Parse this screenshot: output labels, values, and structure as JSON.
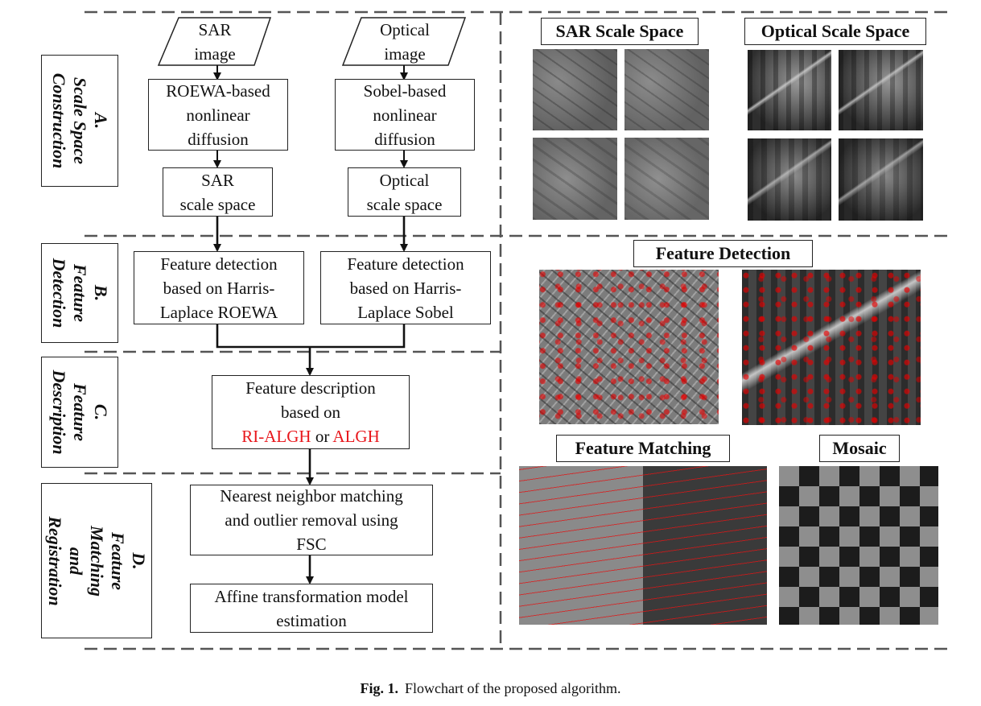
{
  "flow": {
    "sar_input": "SAR\nimage",
    "optical_input": "Optical\nimage",
    "roewa_diffusion": "ROEWA-based\nnonlinear\ndiffusion",
    "sobel_diffusion": "Sobel-based\nnonlinear\ndiffusion",
    "sar_scale_space": "SAR\nscale space",
    "optical_scale_space": "Optical\nscale space",
    "detect_roewa": "Feature detection\nbased on Harris-\nLaplace ROEWA",
    "detect_sobel": "Feature detection\nbased on Harris-\nLaplace Sobel",
    "description_line1": "Feature description",
    "description_line2": "based on",
    "description_ri": "RI-ALGH",
    "description_or": " or ",
    "description_algh": "ALGH",
    "matching": "Nearest neighbor matching\nand outlier removal using\nFSC",
    "affine": "Affine transformation model\nestimation"
  },
  "stages": {
    "a": "A.\nScale Space\nConstruction",
    "b": "B.\nFeature\nDetection",
    "c": "C.\nFeature\nDescription",
    "d": "D.\nFeature\nMatching and\nRegistration"
  },
  "panels": {
    "sar_scale_space": "SAR Scale Space",
    "optical_scale_space": "Optical Scale Space",
    "feature_detection": "Feature Detection",
    "feature_matching": "Feature Matching",
    "mosaic": "Mosaic"
  },
  "caption": {
    "label": "Fig. 1.",
    "text": "Flowchart of the proposed algorithm."
  },
  "colors": {
    "highlight": "#e8161b",
    "line": "#222222",
    "dashed": "#555555"
  }
}
